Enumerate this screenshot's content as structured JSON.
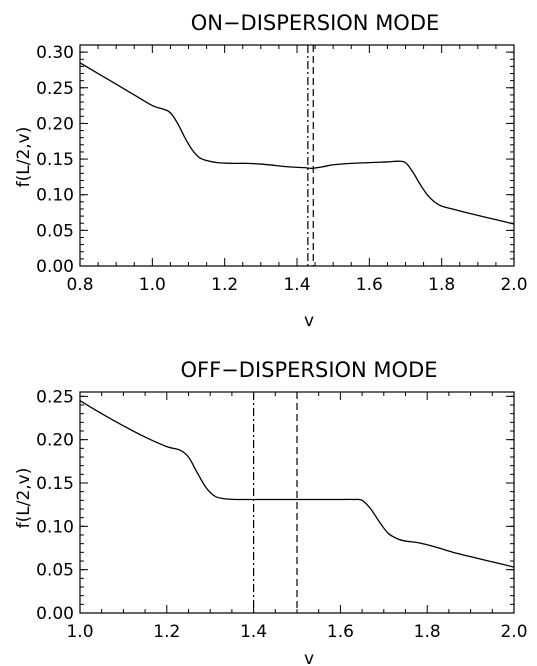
{
  "chart_data": [
    {
      "type": "line",
      "title": "ON−DISPERSION MODE",
      "xlabel": "v",
      "ylabel": "f(L/2,v)",
      "xlim": [
        0.8,
        2.0
      ],
      "ylim": [
        0.0,
        0.31
      ],
      "x_ticks": [
        0.8,
        1.0,
        1.2,
        1.4,
        1.6,
        1.8,
        2.0
      ],
      "x_tick_labels": [
        "0.8",
        "1.0",
        "1.2",
        "1.4",
        "1.6",
        "1.8",
        "2.0"
      ],
      "y_ticks": [
        0.0,
        0.05,
        0.1,
        0.15,
        0.2,
        0.25,
        0.3
      ],
      "y_tick_labels": [
        "0.00",
        "0.05",
        "0.10",
        "0.15",
        "0.20",
        "0.25",
        "0.30"
      ],
      "grid": false,
      "series": [
        {
          "x": [
            0.8,
            0.85,
            0.9,
            0.95,
            1.0,
            1.03,
            1.05,
            1.07,
            1.09,
            1.11,
            1.13,
            1.15,
            1.18,
            1.22,
            1.26,
            1.3,
            1.34,
            1.38,
            1.42,
            1.44,
            1.47,
            1.5,
            1.55,
            1.6,
            1.65,
            1.68,
            1.7,
            1.72,
            1.74,
            1.76,
            1.78,
            1.8,
            1.83,
            1.86,
            1.9,
            1.95,
            2.0
          ],
          "y": [
            0.285,
            0.27,
            0.255,
            0.24,
            0.225,
            0.22,
            0.215,
            0.2,
            0.18,
            0.163,
            0.152,
            0.148,
            0.145,
            0.144,
            0.144,
            0.143,
            0.141,
            0.139,
            0.138,
            0.137,
            0.139,
            0.142,
            0.144,
            0.145,
            0.146,
            0.147,
            0.145,
            0.132,
            0.115,
            0.1,
            0.09,
            0.084,
            0.08,
            0.076,
            0.071,
            0.065,
            0.059
          ]
        }
      ],
      "vlines": [
        {
          "x": 1.43,
          "style": "dash-dot"
        },
        {
          "x": 1.445,
          "style": "dashed"
        }
      ]
    },
    {
      "type": "line",
      "title": "OFF−DISPERSION MODE",
      "xlabel": "v",
      "ylabel": "f(L/2,v)",
      "xlim": [
        1.0,
        2.0
      ],
      "ylim": [
        0.0,
        0.255
      ],
      "x_ticks": [
        1.0,
        1.2,
        1.4,
        1.6,
        1.8,
        2.0
      ],
      "x_tick_labels": [
        "1.0",
        "1.2",
        "1.4",
        "1.6",
        "1.8",
        "2.0"
      ],
      "y_ticks": [
        0.0,
        0.05,
        0.1,
        0.15,
        0.2,
        0.25
      ],
      "y_tick_labels": [
        "0.00",
        "0.05",
        "0.10",
        "0.15",
        "0.20",
        "0.25"
      ],
      "grid": false,
      "series": [
        {
          "x": [
            1.0,
            1.05,
            1.1,
            1.15,
            1.2,
            1.23,
            1.25,
            1.27,
            1.29,
            1.31,
            1.33,
            1.36,
            1.4,
            1.45,
            1.5,
            1.55,
            1.6,
            1.63,
            1.65,
            1.67,
            1.69,
            1.71,
            1.73,
            1.75,
            1.78,
            1.82,
            1.86,
            1.9,
            1.95,
            2.0
          ],
          "y": [
            0.245,
            0.23,
            0.216,
            0.203,
            0.192,
            0.188,
            0.18,
            0.162,
            0.145,
            0.135,
            0.132,
            0.131,
            0.131,
            0.131,
            0.131,
            0.131,
            0.131,
            0.131,
            0.13,
            0.12,
            0.105,
            0.092,
            0.086,
            0.083,
            0.081,
            0.076,
            0.07,
            0.065,
            0.059,
            0.053
          ]
        }
      ],
      "vlines": [
        {
          "x": 1.4,
          "style": "dash-dot"
        },
        {
          "x": 1.5,
          "style": "dashed"
        }
      ]
    }
  ]
}
